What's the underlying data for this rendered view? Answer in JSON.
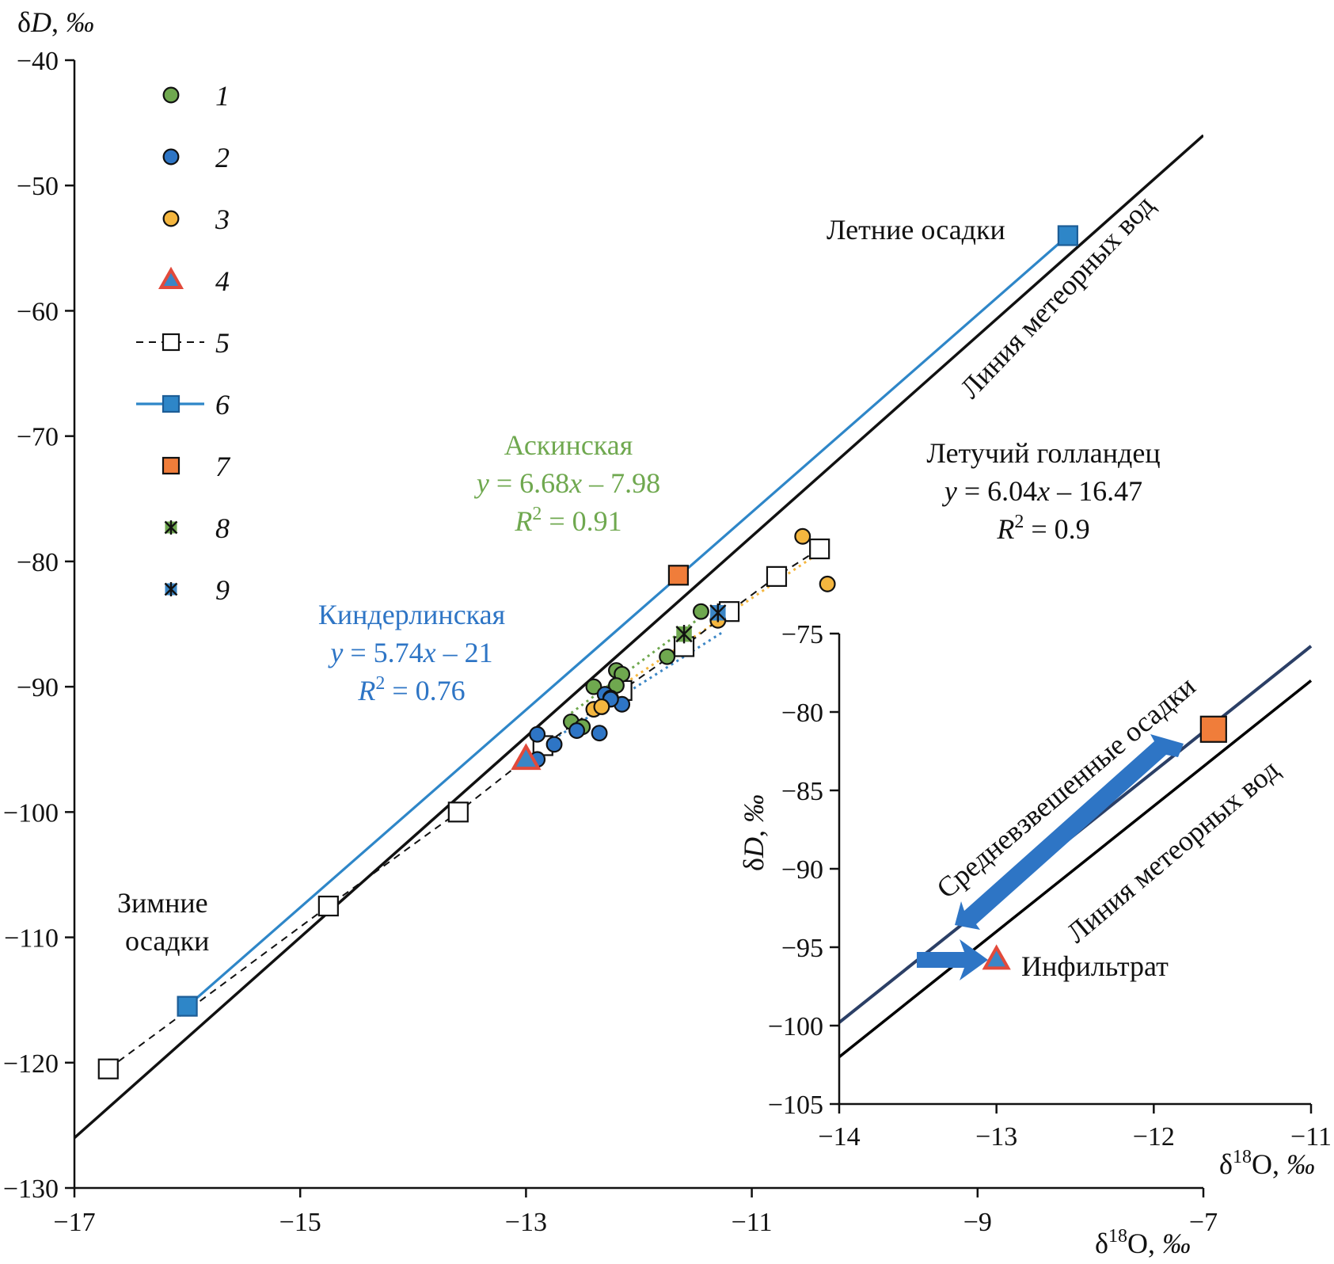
{
  "chart_data": [
    {
      "type": "scatter",
      "xlabel": "δ18O, ‰",
      "ylabel": "δD, ‰",
      "xlim": [
        -17,
        -7
      ],
      "ylim": [
        -130,
        -40
      ],
      "xticks": [
        "−17",
        "−15",
        "−13",
        "−11",
        "−9",
        "−7"
      ],
      "yticks": [
        "−40",
        "−50",
        "−60",
        "−70",
        "−80",
        "−90",
        "−100",
        "−110",
        "−120",
        "−130"
      ],
      "legend": {
        "position": "top-left",
        "entries": [
          "1",
          "2",
          "3",
          "4",
          "5",
          "6",
          "7",
          "8",
          "9"
        ]
      },
      "series": [
        {
          "name": "1",
          "marker": "circle",
          "color": "#6fa84f",
          "points": [
            [
              -12.4,
              -90.0
            ],
            [
              -12.2,
              -88.7
            ],
            [
              -12.15,
              -89.0
            ],
            [
              -12.2,
              -89.9
            ],
            [
              -12.6,
              -92.8
            ],
            [
              -12.5,
              -93.2
            ],
            [
              -11.75,
              -87.6
            ],
            [
              -11.45,
              -84.0
            ]
          ]
        },
        {
          "name": "2",
          "marker": "circle",
          "color": "#2e75c5",
          "points": [
            [
              -12.9,
              -93.8
            ],
            [
              -12.9,
              -95.8
            ],
            [
              -12.75,
              -94.6
            ],
            [
              -12.55,
              -93.5
            ],
            [
              -12.35,
              -93.7
            ],
            [
              -12.3,
              -90.6
            ],
            [
              -12.15,
              -91.4
            ],
            [
              -12.25,
              -90.9
            ],
            [
              -12.25,
              -91.0
            ]
          ]
        },
        {
          "name": "3",
          "marker": "circle",
          "color": "#f4b63f",
          "points": [
            [
              -12.4,
              -91.8
            ],
            [
              -12.33,
              -91.6
            ],
            [
              -11.3,
              -84.7
            ],
            [
              -10.55,
              -78.0
            ],
            [
              -10.33,
              -81.8
            ]
          ]
        },
        {
          "name": "4",
          "marker": "triangle",
          "color": "#e24a3b",
          "points": [
            [
              -13.0,
              -95.8
            ]
          ]
        },
        {
          "name": "5",
          "marker": "open-square",
          "line": "dashed",
          "color": "#000000",
          "points": [
            [
              -16.7,
              -120.5
            ],
            [
              -14.75,
              -107.5
            ],
            [
              -13.6,
              -100.0
            ],
            [
              -12.85,
              -94.7
            ],
            [
              -12.15,
              -90.3
            ],
            [
              -11.6,
              -86.8
            ],
            [
              -11.2,
              -84.0
            ],
            [
              -10.78,
              -81.2
            ],
            [
              -10.4,
              -79.0
            ]
          ]
        },
        {
          "name": "6",
          "marker": "filled-square",
          "line": "solid",
          "color": "#2e86c8",
          "points": [
            [
              -16.0,
              -115.5
            ],
            [
              -8.2,
              -54.0
            ]
          ]
        },
        {
          "name": "7",
          "marker": "filled-square",
          "color": "#f07d3a",
          "points": [
            [
              -11.65,
              -81.1
            ]
          ]
        },
        {
          "name": "8",
          "marker": "star-square",
          "color": "#6fa84f",
          "points": [
            [
              -11.6,
              -85.8
            ]
          ]
        },
        {
          "name": "9",
          "marker": "star-square",
          "color": "#3b86c6",
          "points": [
            [
              -11.3,
              -84.1
            ]
          ]
        }
      ],
      "lines": [
        {
          "label": "Линия метеорных вод",
          "x": [
            -17,
            -7.0
          ],
          "y": [
            -126,
            -46
          ]
        },
        {
          "label": "Аскинская",
          "style": "dotted",
          "color": "#6fa84f",
          "x": [
            -12.6,
            -11.4
          ],
          "y": [
            -92.1,
            -84.1
          ]
        },
        {
          "label": "Киндерлинская",
          "style": "dotted",
          "color": "#3b86c6",
          "x": [
            -12.9,
            -11.25
          ],
          "y": [
            -95.0,
            -85.6
          ]
        },
        {
          "label": "Летучий голландец",
          "style": "dotted",
          "color": "#f4b63f",
          "x": [
            -12.4,
            -10.4
          ],
          "y": [
            -91.4,
            -79.3
          ]
        }
      ],
      "annotations": {
        "summer": "Летние осадки",
        "winter_1": "Зимние",
        "winter_2": "осадки",
        "mwl": "Линия метеорных вод",
        "askin_name": "Аскинская",
        "askin_eq": "y = 6.68x – 7.98",
        "askin_r2": "R2 = 0.91",
        "kinder_name": "Киндерлинская",
        "kinder_eq": "y = 5.74x – 21",
        "kinder_r2": "R2 = 0.76",
        "dutch_name": "Летучий голландец",
        "dutch_eq": "y = 6.04x – 16.47",
        "dutch_r2": "R2 = 0.9"
      }
    },
    {
      "type": "line",
      "inset": true,
      "xlabel": "δ18O, ‰",
      "ylabel": "δD, ‰",
      "xlim": [
        -14,
        -11
      ],
      "ylim": [
        -105,
        -75
      ],
      "xticks": [
        "−14",
        "−13",
        "−12",
        "−11"
      ],
      "yticks": [
        "−75",
        "−80",
        "−85",
        "−90",
        "−95",
        "−100",
        "−105"
      ],
      "lines": [
        {
          "label": "Средневзвешенные осадки",
          "color": "#2b3f66",
          "x": [
            -14,
            -11
          ],
          "y": [
            -99.8,
            -75.8
          ]
        },
        {
          "label": "Линия метеорных вод",
          "color": "#000000",
          "x": [
            -14,
            -11
          ],
          "y": [
            -102,
            -78
          ]
        }
      ],
      "points": [
        {
          "label": "7",
          "marker": "filled-square",
          "color": "#f07d3a",
          "x": -11.62,
          "y": -81.1
        },
        {
          "label": "Инфильтрат",
          "marker": "triangle",
          "color": "#e24a3b",
          "x": -13.0,
          "y": -95.8
        }
      ],
      "annotations": {
        "weighted": "Средневзвешенные осадки",
        "mwl": "Линия метеорных вод",
        "infiltrate": "Инфильтрат"
      }
    }
  ]
}
